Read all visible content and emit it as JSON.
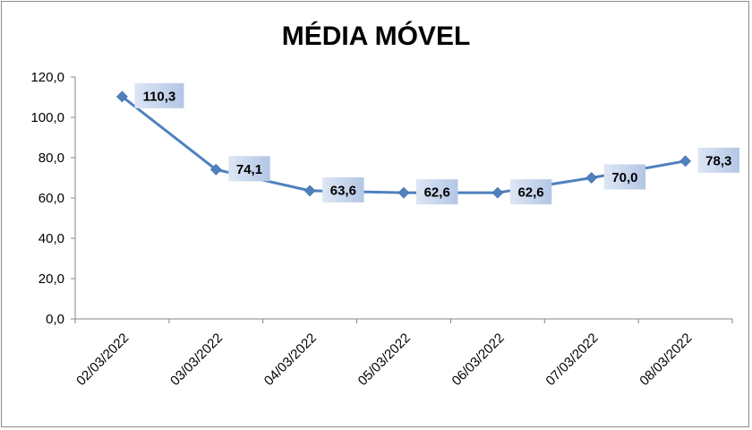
{
  "chart_data": {
    "type": "line",
    "title": "MÉDIA MÓVEL",
    "xlabel": "",
    "ylabel": "",
    "categories": [
      "02/03/2022",
      "03/03/2022",
      "04/03/2022",
      "05/03/2022",
      "06/03/2022",
      "07/03/2022",
      "08/03/2022"
    ],
    "series": [
      {
        "values": [
          110.3,
          74.1,
          63.6,
          62.6,
          62.6,
          70.0,
          78.3
        ],
        "labels": [
          "110,3",
          "74,1",
          "63,6",
          "62,6",
          "62,6",
          "70,0",
          "78,3"
        ],
        "color": "#4f81bd"
      }
    ],
    "ylim": [
      0,
      120
    ],
    "yticks": [
      "0,0",
      "20,0",
      "40,0",
      "60,0",
      "80,0",
      "100,0",
      "120,0"
    ],
    "grid": false,
    "legend": "none",
    "label_box_color": "#c5d3ea",
    "axis_color": "#868686"
  }
}
